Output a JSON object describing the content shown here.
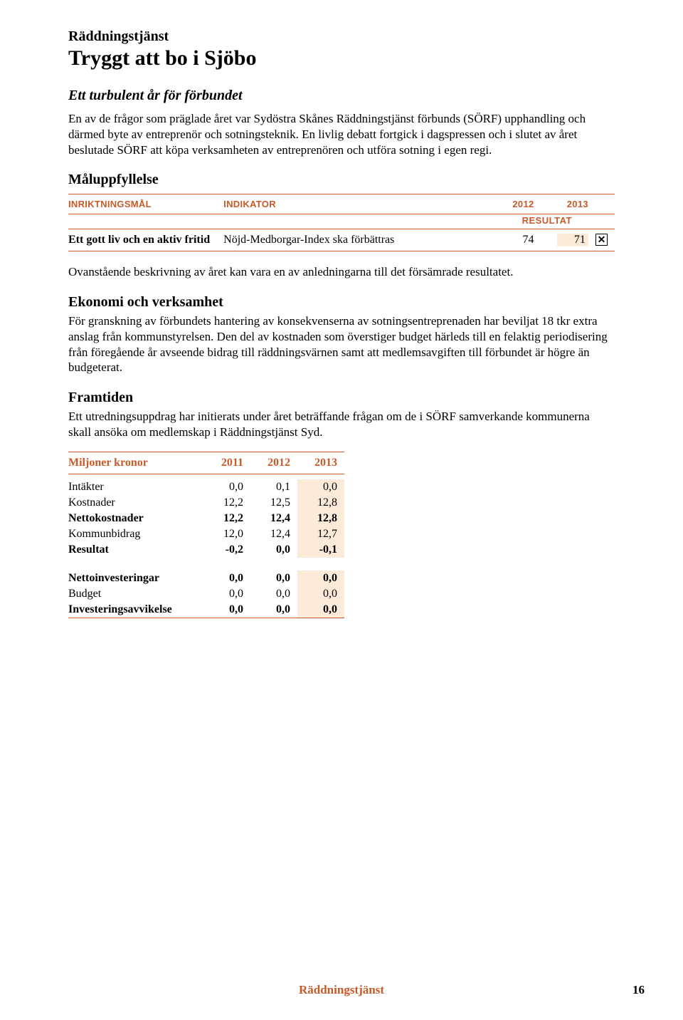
{
  "colors": {
    "accent": "#c55a2a",
    "highlight_bg": "#fbead8",
    "text": "#000000",
    "page_bg": "#ffffff"
  },
  "typography": {
    "body_family": "Garamond/Georgia serif",
    "sans_family": "Arial",
    "pretitle_size_pt": 15,
    "title_size_pt": 22,
    "body_size_pt": 12.5
  },
  "header": {
    "pretitle": "Räddningstjänst",
    "title": "Tryggt att bo i Sjöbo"
  },
  "intro": {
    "heading": "Ett turbulent år för förbundet",
    "text": "En av de frågor som präglade året var Sydöstra Skånes Räddningstjänst förbunds (SÖRF) upphandling och därmed byte av entreprenör och sotningsteknik. En livlig debatt fortgick i dagspressen och i slutet av året beslutade SÖRF att köpa verksamheten av entreprenören och utföra sotning i egen regi."
  },
  "goals": {
    "heading": "Måluppfyllelse",
    "result_label": "RESULTAT",
    "columns": {
      "c1": "INRIKTNINGSMÅL",
      "c2": "INDIKATOR",
      "c3": "2012",
      "c4": "2013"
    },
    "row": {
      "goal": "Ett gott liv och en aktiv fritid",
      "indicator": "Nöjd-Medborgar-Index ska förbättras",
      "v2012": "74",
      "v2013": "71",
      "status_mark": "✕",
      "status_passed": false
    }
  },
  "analysis": {
    "p1": "Ovanstående beskrivning av året kan vara en av anledningarna till det försämrade resultatet.",
    "economy_heading": "Ekonomi och verksamhet",
    "economy_text": "För granskning av förbundets hantering av konsekvenserna av sotningsentreprenaden har beviljat 18 tkr extra anslag från kommunstyrelsen. Den del av kostnaden som överstiger budget härleds till en felaktig periodisering från föregående år avseende bidrag till räddningsvärnen samt att medlemsavgiften till förbundet är högre än budgeterat.",
    "future_heading": "Framtiden",
    "future_text": "Ett utredningsuppdrag har initierats under året beträffande frågan om de i SÖRF samverkande kommunerna skall ansöka om medlemskap i Räddningstjänst Syd."
  },
  "finance": {
    "header_label": "Miljoner kronor",
    "years": [
      "2011",
      "2012",
      "2013"
    ],
    "highlight_year_index": 2,
    "rows": [
      {
        "label": "Intäkter",
        "bold": false,
        "values": [
          "0,0",
          "0,1",
          "0,0"
        ]
      },
      {
        "label": "Kostnader",
        "bold": false,
        "values": [
          "12,2",
          "12,5",
          "12,8"
        ]
      },
      {
        "label": "Nettokostnader",
        "bold": true,
        "values": [
          "12,2",
          "12,4",
          "12,8"
        ]
      },
      {
        "label": "Kommunbidrag",
        "bold": false,
        "values": [
          "12,0",
          "12,4",
          "12,7"
        ]
      },
      {
        "label": "Resultat",
        "bold": true,
        "values": [
          "-0,2",
          "0,0",
          "-0,1"
        ]
      }
    ],
    "rows2": [
      {
        "label": "Nettoinvesteringar",
        "bold": true,
        "values": [
          "0,0",
          "0,0",
          "0,0"
        ]
      },
      {
        "label": "Budget",
        "bold": false,
        "values": [
          "0,0",
          "0,0",
          "0,0"
        ]
      },
      {
        "label": "Investeringsavvikelse",
        "bold": true,
        "values": [
          "0,0",
          "0,0",
          "0,0"
        ]
      }
    ]
  },
  "footer": {
    "text": "Räddningstjänst",
    "page_number": "16"
  }
}
